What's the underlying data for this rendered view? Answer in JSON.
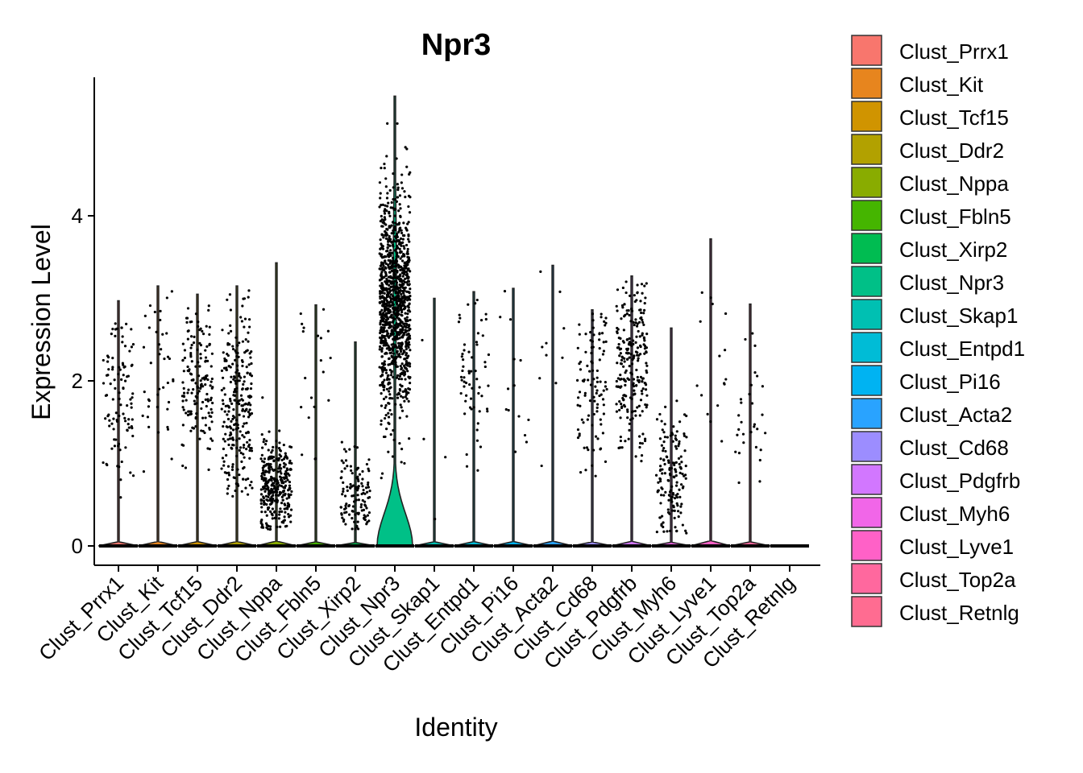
{
  "chart_data": {
    "type": "violin",
    "title": "Npr3",
    "xlabel": "Identity",
    "ylabel": "Expression Level",
    "ylim": [
      -0.25,
      5.6
    ],
    "yticks": [
      0,
      2,
      4
    ],
    "legend_position": "right",
    "categories": [
      "Clust_Prrx1",
      "Clust_Kit",
      "Clust_Tcf15",
      "Clust_Ddr2",
      "Clust_Nppa",
      "Clust_Fbln5",
      "Clust_Xirp2",
      "Clust_Npr3",
      "Clust_Skap1",
      "Clust_Entpd1",
      "Clust_Pi16",
      "Clust_Acta2",
      "Clust_Cd68",
      "Clust_Pdgfrb",
      "Clust_Myh6",
      "Clust_Lyve1",
      "Clust_Top2a",
      "Clust_Retnlg"
    ],
    "colors": [
      "#F8766D",
      "#E7851E",
      "#D09400",
      "#B2A100",
      "#89AC00",
      "#45B500",
      "#00BC51",
      "#00C087",
      "#00C0B2",
      "#00BCD6",
      "#00B3F2",
      "#29A3FF",
      "#9C8DFF",
      "#D277FF",
      "#F166E8",
      "#FF61C7",
      "#FF689E",
      "#FF6C91"
    ],
    "violins": [
      {
        "cluster": "Clust_Prrx1",
        "max": 2.97,
        "zero_fraction": 0.92,
        "points": {
          "count": 100,
          "min": 0.5,
          "max": 2.7,
          "center": 1.9,
          "spread": 0.55
        }
      },
      {
        "cluster": "Clust_Kit",
        "max": 3.15,
        "zero_fraction": 0.95,
        "points": {
          "count": 40,
          "min": 0.75,
          "max": 3.1,
          "center": 2.1,
          "spread": 0.6
        }
      },
      {
        "cluster": "Clust_Tcf15",
        "max": 3.05,
        "zero_fraction": 0.9,
        "points": {
          "count": 160,
          "min": 0.9,
          "max": 3.05,
          "center": 2.0,
          "spread": 0.5
        }
      },
      {
        "cluster": "Clust_Ddr2",
        "max": 3.15,
        "zero_fraction": 0.85,
        "points": {
          "count": 260,
          "min": 0.6,
          "max": 3.15,
          "center": 1.7,
          "spread": 0.55
        }
      },
      {
        "cluster": "Clust_Nppa",
        "max": 3.43,
        "zero_fraction": 0.82,
        "points": {
          "count": 320,
          "min": 0.2,
          "max": 3.4,
          "center": 0.75,
          "spread": 0.3
        }
      },
      {
        "cluster": "Clust_Fbln5",
        "max": 2.92,
        "zero_fraction": 0.97,
        "points": {
          "count": 20,
          "min": 1.0,
          "max": 2.9,
          "center": 1.9,
          "spread": 0.5
        }
      },
      {
        "cluster": "Clust_Xirp2",
        "max": 2.47,
        "zero_fraction": 0.9,
        "points": {
          "count": 120,
          "min": 0.2,
          "max": 1.9,
          "center": 0.6,
          "spread": 0.3
        }
      },
      {
        "cluster": "Clust_Npr3",
        "max": 5.45,
        "zero_fraction": 0.35,
        "points": {
          "count": 1100,
          "min": 0.6,
          "max": 5.4,
          "center": 2.95,
          "spread": 0.7
        }
      },
      {
        "cluster": "Clust_Skap1",
        "max": 3.0,
        "zero_fraction": 0.99,
        "points": {
          "count": 4,
          "min": 0.3,
          "max": 3.0,
          "center": 1.5,
          "spread": 1.0
        }
      },
      {
        "cluster": "Clust_Entpd1",
        "max": 3.08,
        "zero_fraction": 0.95,
        "points": {
          "count": 60,
          "min": 0.9,
          "max": 3.0,
          "center": 2.0,
          "spread": 0.55
        }
      },
      {
        "cluster": "Clust_Pi16",
        "max": 3.12,
        "zero_fraction": 0.98,
        "points": {
          "count": 14,
          "min": 0.35,
          "max": 3.1,
          "center": 2.0,
          "spread": 0.6
        }
      },
      {
        "cluster": "Clust_Acta2",
        "max": 3.4,
        "zero_fraction": 0.98,
        "points": {
          "count": 10,
          "min": 0.9,
          "max": 3.4,
          "center": 2.3,
          "spread": 0.7
        }
      },
      {
        "cluster": "Clust_Cd68",
        "max": 2.86,
        "zero_fraction": 0.92,
        "points": {
          "count": 100,
          "min": 0.7,
          "max": 2.85,
          "center": 2.0,
          "spread": 0.6
        }
      },
      {
        "cluster": "Clust_Pdgfrb",
        "max": 3.27,
        "zero_fraction": 0.85,
        "points": {
          "count": 240,
          "min": 1.0,
          "max": 3.25,
          "center": 2.2,
          "spread": 0.5
        }
      },
      {
        "cluster": "Clust_Myh6",
        "max": 2.64,
        "zero_fraction": 0.88,
        "points": {
          "count": 150,
          "min": 0.15,
          "max": 2.6,
          "center": 0.8,
          "spread": 0.4
        }
      },
      {
        "cluster": "Clust_Lyve1",
        "max": 3.72,
        "zero_fraction": 0.97,
        "points": {
          "count": 16,
          "min": 0.9,
          "max": 3.72,
          "center": 2.0,
          "spread": 0.8
        }
      },
      {
        "cluster": "Clust_Top2a",
        "max": 2.93,
        "zero_fraction": 0.95,
        "points": {
          "count": 30,
          "min": 0.55,
          "max": 2.9,
          "center": 1.6,
          "spread": 0.7
        }
      },
      {
        "cluster": "Clust_Retnlg",
        "max": 0.0,
        "zero_fraction": 1.0,
        "points": {
          "count": 0,
          "min": 0,
          "max": 0,
          "center": 0,
          "spread": 0
        }
      }
    ]
  }
}
